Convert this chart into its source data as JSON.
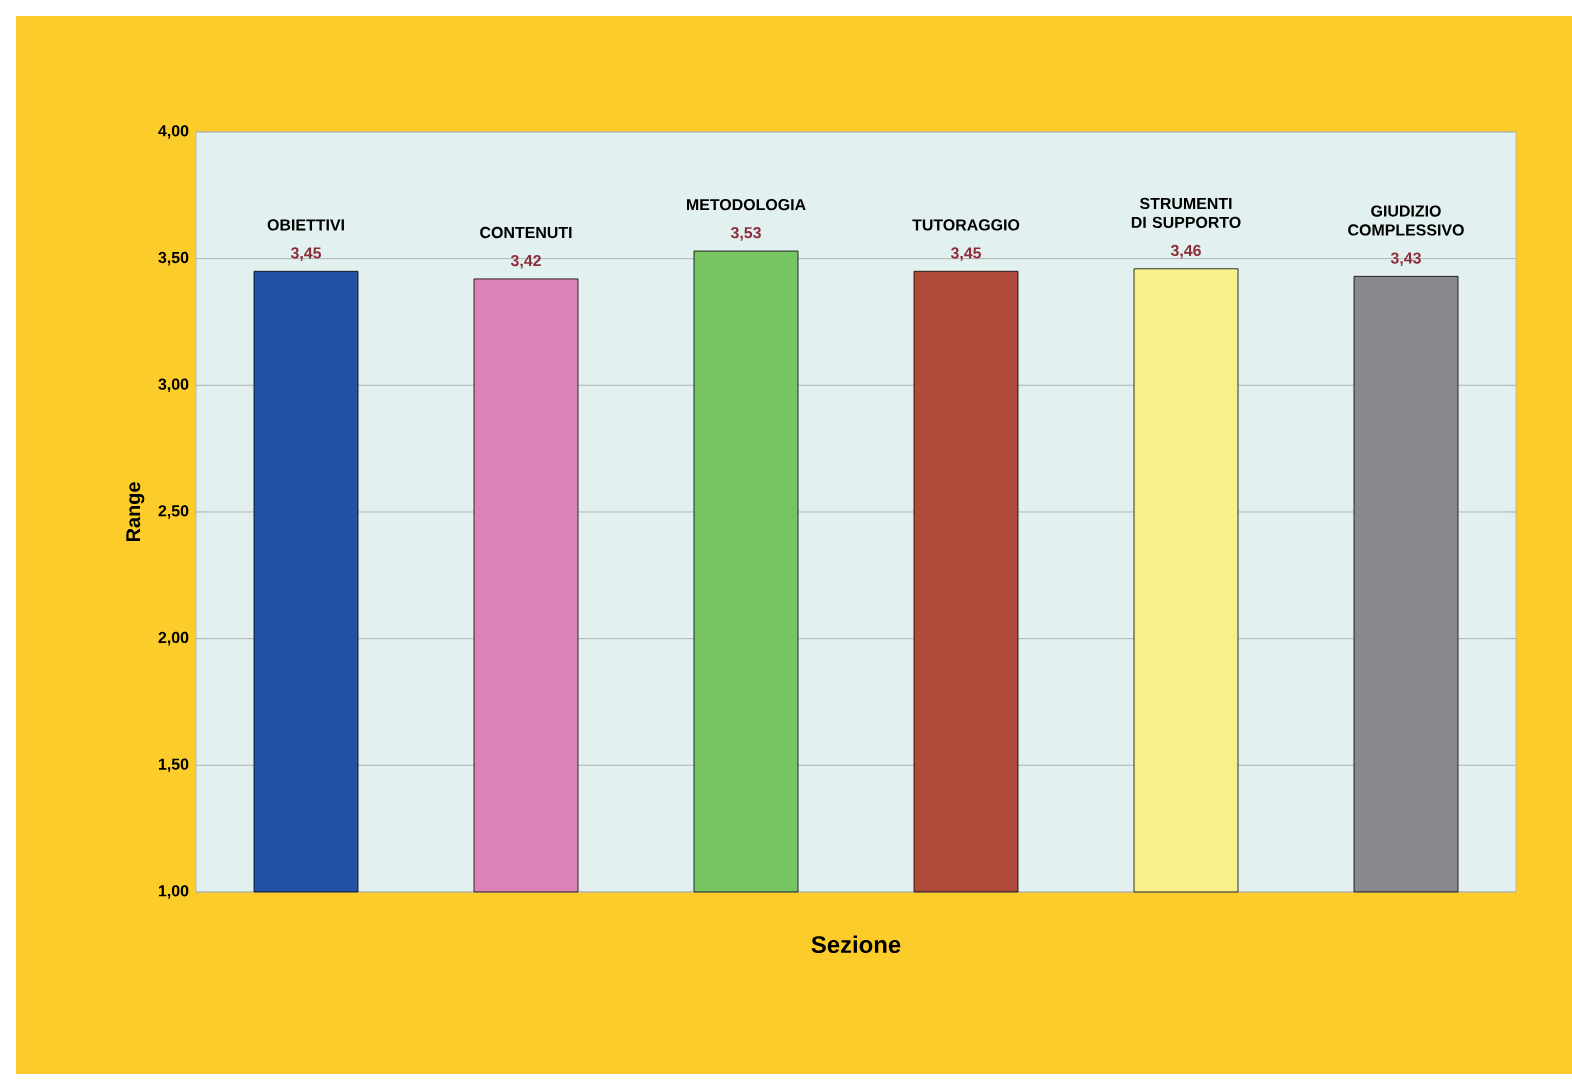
{
  "chart_data": {
    "type": "bar",
    "xlabel": "Sezione",
    "ylabel": "Range",
    "categories": [
      "OBIETTIVI",
      "CONTENUTI",
      "METODOLOGIA",
      "TUTORAGGIO",
      "STRUMENTI DI SUPPORTO",
      "GIUDIZIO COMPLESSIVO"
    ],
    "values": [
      3.45,
      3.42,
      3.53,
      3.45,
      3.46,
      3.43
    ],
    "colors": [
      "#2352a5",
      "#dd82b8",
      "#77c462",
      "#b04a3a",
      "#f8f08c",
      "#8a8a8e"
    ],
    "value_labels": [
      "3,45",
      "3,42",
      "3,53",
      "3,45",
      "3,46",
      "3,43"
    ],
    "ylim": [
      1,
      4
    ],
    "yticks": [
      {
        "value": 1,
        "label": "1,00"
      },
      {
        "value": 1.5,
        "label": "1,50"
      },
      {
        "value": 2,
        "label": "2,00"
      },
      {
        "value": 2.5,
        "label": "2,50"
      },
      {
        "value": 3,
        "label": "3,00"
      },
      {
        "value": 3.5,
        "label": "3,50"
      },
      {
        "value": 4,
        "label": "4,00"
      }
    ],
    "grid": "y"
  }
}
